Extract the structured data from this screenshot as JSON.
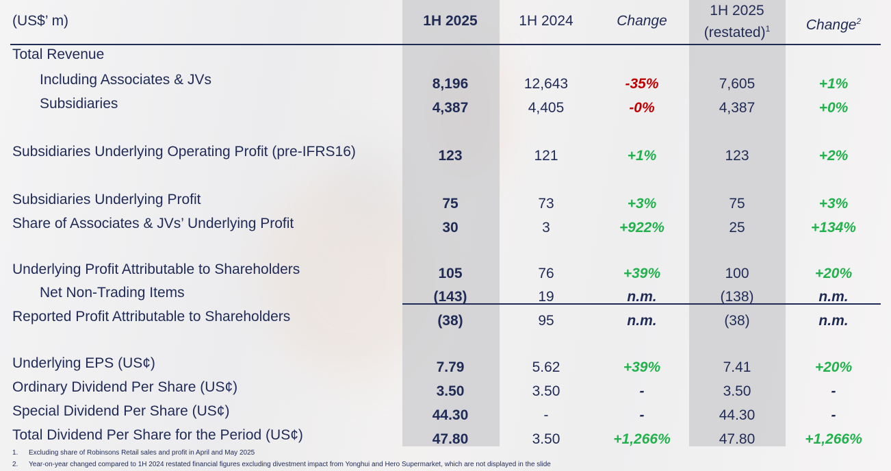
{
  "header": {
    "unit": "(US$’ m)",
    "columns": [
      {
        "label": "1H 2025"
      },
      {
        "label": "1H 2024"
      },
      {
        "label": "Change"
      },
      {
        "label": "1H 2025",
        "label2": "(restated)",
        "sup": "1"
      },
      {
        "label": "Change",
        "sup": "2"
      }
    ]
  },
  "rows": [
    {
      "label": "Total Revenue",
      "indent": false,
      "values": [
        "",
        "",
        "",
        "",
        ""
      ]
    },
    {
      "label": "Including Associates & JVs",
      "indent": true,
      "values": [
        "8,196",
        "12,643",
        "-35%",
        "7,605",
        "+1%"
      ]
    },
    {
      "label": "Subsidiaries",
      "indent": true,
      "values": [
        "4,387",
        "4,405",
        "-0%",
        "4,387",
        "+0%"
      ]
    },
    {
      "label": "Subsidiaries Underlying Operating Profit (pre-IFRS16)",
      "indent": false,
      "values": [
        "123",
        "121",
        "+1%",
        "123",
        "+2%"
      ]
    },
    {
      "label": "Subsidiaries Underlying Profit",
      "indent": false,
      "values": [
        "75",
        "73",
        "+3%",
        "75",
        "+3%"
      ]
    },
    {
      "label": "Share of Associates & JVs’ Underlying Profit",
      "indent": false,
      "values": [
        "30",
        "3",
        "+922%",
        "25",
        "+134%"
      ]
    },
    {
      "label": "Underlying Profit Attributable to Shareholders",
      "indent": false,
      "values": [
        "105",
        "76",
        "+39%",
        "100",
        "+20%"
      ]
    },
    {
      "label": "Net Non-Trading Items",
      "indent": true,
      "values": [
        "(143)",
        "19",
        "n.m.",
        "(138)",
        "n.m."
      ]
    },
    {
      "label": "Reported Profit Attributable to Shareholders",
      "indent": false,
      "values": [
        "(38)",
        "95",
        "n.m.",
        "(38)",
        "n.m."
      ]
    },
    {
      "label": "Underlying EPS (US¢)",
      "indent": false,
      "values": [
        "7.79",
        "5.62",
        "+39%",
        "7.41",
        "+20%"
      ]
    },
    {
      "label": "Ordinary Dividend Per Share (US¢)",
      "indent": false,
      "values": [
        "3.50",
        "3.50",
        "-",
        "3.50",
        "-"
      ]
    },
    {
      "label": "Special Dividend Per Share (US¢)",
      "indent": false,
      "values": [
        "44.30",
        "-",
        "-",
        "44.30",
        "-"
      ]
    },
    {
      "label": "Total Dividend Per Share for the Period (US¢)",
      "indent": false,
      "values": [
        "47.80",
        "3.50",
        "+1,266%",
        "47.80",
        "+1,266%"
      ]
    }
  ],
  "footnotes": [
    {
      "num": "1.",
      "text": "Excluding share of Robinsons Retail sales and profit in April and May 2025"
    },
    {
      "num": "2.",
      "text": "Year-on-year changed compared to 1H 2024 restated financial figures excluding divestment impact from Yonghui and Hero Supermarket, which are not displayed in the slide"
    }
  ],
  "colors": {
    "navy": "#1f2a55",
    "negative": "#c00000",
    "positive": "#22b14c",
    "band": "#d0d0d3"
  }
}
